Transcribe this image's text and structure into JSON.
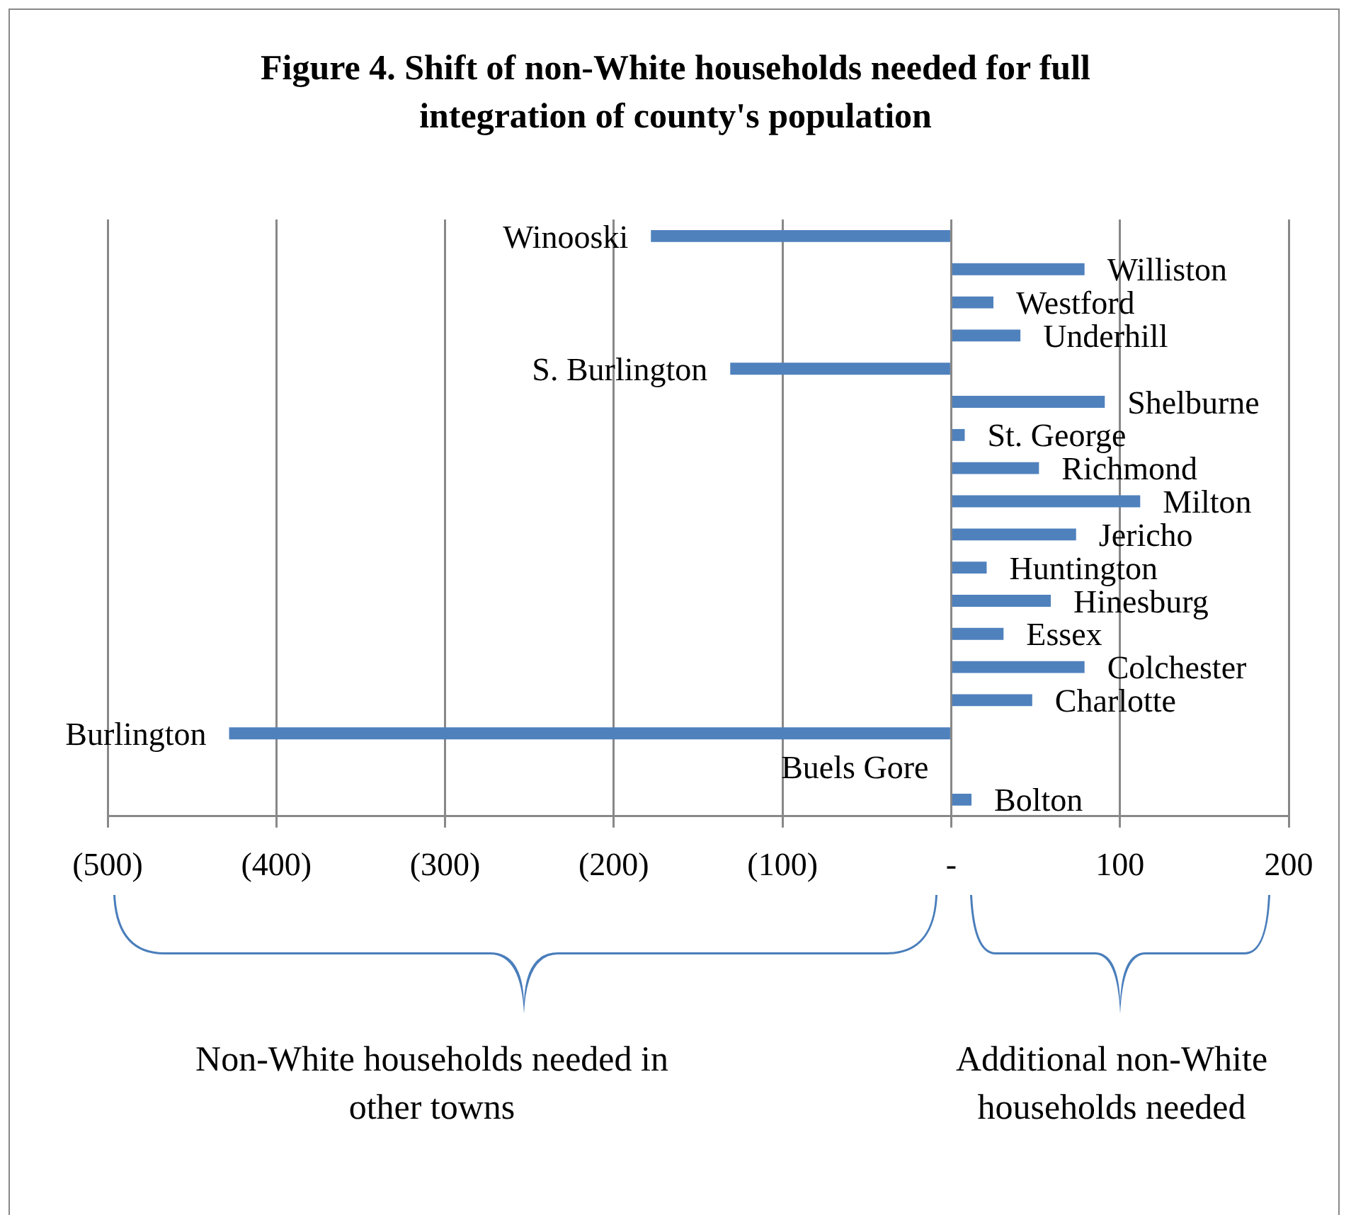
{
  "chart_data": {
    "type": "bar",
    "orientation": "horizontal",
    "title": "Figure 4. Shift of non-White households needed for full integration of county's population",
    "categories": [
      "Winooski",
      "Williston",
      "Westford",
      "Underhill",
      "S. Burlington",
      "Shelburne",
      "St. George",
      "Richmond",
      "Milton",
      "Jericho",
      "Huntington",
      "Hinesburg",
      "Essex",
      "Colchester",
      "Charlotte",
      "Burlington",
      "Buels Gore",
      "Bolton"
    ],
    "values": [
      -178,
      79,
      25,
      41,
      -131,
      91,
      8,
      52,
      112,
      74,
      21,
      59,
      31,
      79,
      48,
      -428,
      0,
      12
    ],
    "color": "#4f81bd",
    "xlim": [
      -500,
      200
    ],
    "xticks": [
      {
        "value": -500,
        "label": "(500)"
      },
      {
        "value": -400,
        "label": "(400)"
      },
      {
        "value": -300,
        "label": "(300)"
      },
      {
        "value": -200,
        "label": "(200)"
      },
      {
        "value": -100,
        "label": "(100)"
      },
      {
        "value": 0,
        "label": "-"
      },
      100,
      200
    ],
    "grid": "x",
    "tick_labels": "x",
    "legend": false,
    "annotations": [
      "Non-White households needed in other towns",
      "Additional non-White households needed"
    ]
  }
}
